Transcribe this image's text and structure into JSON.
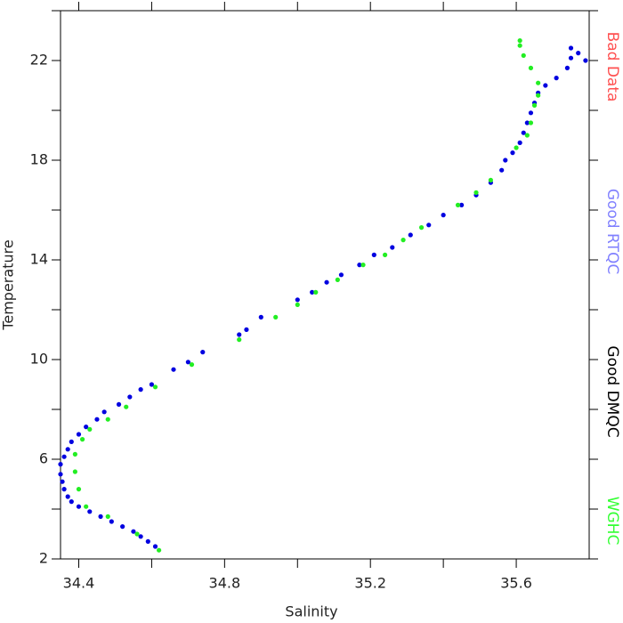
{
  "chart_data": {
    "type": "scatter",
    "x_label": "Salinity",
    "y_label": "Temperature",
    "xlim": [
      34.35,
      35.8
    ],
    "ylim": [
      2,
      24
    ],
    "xticks": [
      34.4,
      34.8,
      35.2,
      35.6
    ],
    "xminorticks": [
      34.6,
      35.0,
      35.4
    ],
    "yticks": [
      2,
      6,
      10,
      14,
      18,
      22
    ],
    "yminorticks": [
      4,
      8,
      12,
      16,
      20,
      24
    ],
    "legend": [
      {
        "label": "Bad Data",
        "color": "#ff5050"
      },
      {
        "label": "Good RTQC",
        "color": "#8080ff"
      },
      {
        "label": "Good DMQC",
        "color": "#000000"
      },
      {
        "label": "WGHC",
        "color": "#33ff33"
      }
    ],
    "series": [
      {
        "color": "#0000e0",
        "x": [
          34.61,
          34.59,
          34.57,
          34.55,
          34.52,
          34.49,
          34.46,
          34.43,
          34.4,
          34.38,
          34.37,
          34.36,
          34.355,
          34.35,
          34.35,
          34.36,
          34.37,
          34.38,
          34.4,
          34.42,
          34.45,
          34.47,
          34.51,
          34.54,
          34.57,
          34.6,
          34.66,
          34.7,
          34.74,
          34.84,
          34.86,
          34.9,
          35.0,
          35.04,
          35.08,
          35.12,
          35.17,
          35.21,
          35.26,
          35.31,
          35.36,
          35.4,
          35.45,
          35.49,
          35.53,
          35.56,
          35.57,
          35.59,
          35.61,
          35.62,
          35.63,
          35.64,
          35.65,
          35.66,
          35.68,
          35.71,
          35.74,
          35.75,
          35.75,
          35.77,
          35.79
        ],
        "y": [
          2.5,
          2.7,
          2.9,
          3.1,
          3.3,
          3.5,
          3.7,
          3.9,
          4.1,
          4.3,
          4.5,
          4.8,
          5.1,
          5.4,
          5.8,
          6.1,
          6.4,
          6.7,
          7.0,
          7.3,
          7.6,
          7.9,
          8.2,
          8.5,
          8.8,
          9.0,
          9.6,
          9.9,
          10.3,
          11.0,
          11.2,
          11.7,
          12.4,
          12.7,
          13.1,
          13.4,
          13.8,
          14.2,
          14.5,
          15.0,
          15.4,
          15.8,
          16.2,
          16.6,
          17.1,
          17.6,
          18.0,
          18.3,
          18.7,
          19.1,
          19.5,
          19.9,
          20.3,
          20.7,
          21.0,
          21.3,
          21.7,
          22.1,
          22.5,
          22.3,
          22.0
        ]
      },
      {
        "color": "#22ee22",
        "x": [
          34.62,
          34.56,
          34.48,
          34.42,
          34.4,
          34.39,
          34.39,
          34.41,
          34.43,
          34.48,
          34.53,
          34.61,
          34.71,
          34.84,
          34.94,
          35.0,
          35.05,
          35.11,
          35.18,
          35.24,
          35.29,
          35.34,
          35.44,
          35.49,
          35.53,
          35.6,
          35.63,
          35.64,
          35.65,
          35.66,
          35.66,
          35.64,
          35.62,
          35.61,
          35.61
        ],
        "y": [
          2.35,
          3.0,
          3.7,
          4.1,
          4.8,
          5.5,
          6.2,
          6.8,
          7.2,
          7.6,
          8.1,
          8.9,
          9.8,
          10.8,
          11.7,
          12.2,
          12.7,
          13.2,
          13.8,
          14.2,
          14.8,
          15.3,
          16.2,
          16.7,
          17.2,
          18.5,
          19.0,
          19.5,
          20.2,
          20.6,
          21.1,
          21.7,
          22.2,
          22.6,
          22.8
        ]
      }
    ]
  }
}
